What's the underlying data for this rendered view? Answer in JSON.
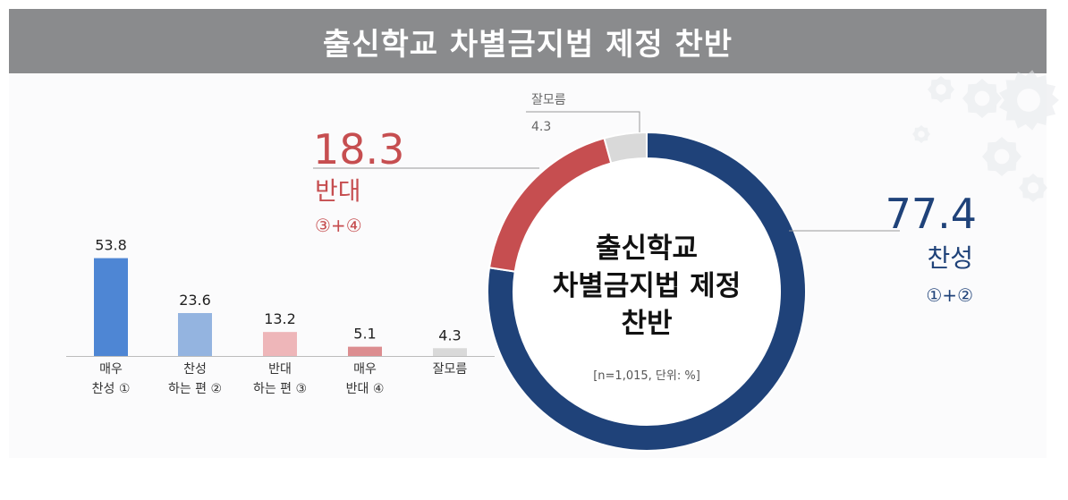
{
  "title": "출신학교 차별금지법 제정 찬반",
  "colors": {
    "title_bg": "#8a8b8d",
    "favor": "#1f4279",
    "oppose": "#c64e50",
    "dontknow": "#d9d9d9",
    "bar_strong_favor": "#4e86d4",
    "bar_favor": "#94b4e0",
    "bar_oppose": "#eeb6b9",
    "bar_strong_oppose": "#dc8d90",
    "bar_dontknow": "#d9d9d9"
  },
  "chart_data": [
    {
      "type": "bar",
      "categories": [
        [
          "매우",
          "찬성 ①"
        ],
        [
          "찬성",
          "하는 편 ②"
        ],
        [
          "반대",
          "하는 편 ③"
        ],
        [
          "매우",
          "반대 ④"
        ],
        [
          "잘모름"
        ]
      ],
      "values": [
        53.8,
        23.6,
        13.2,
        5.1,
        4.3
      ],
      "value_labels": [
        "53.8",
        "23.6",
        "13.2",
        "5.1",
        "4.3"
      ],
      "ylim": [
        0,
        60
      ]
    },
    {
      "type": "pie",
      "variant": "donut",
      "center_text": [
        "출신학교",
        "차별금지법 제정",
        "찬반"
      ],
      "note": "[n=1,015, 단위: %]",
      "slices": [
        {
          "label": "찬성",
          "sub": "①+②",
          "value": 77.4,
          "value_label": "77.4",
          "color": "#1f4279"
        },
        {
          "label": "반대",
          "sub": "③+④",
          "value": 18.3,
          "value_label": "18.3",
          "color": "#c64e50"
        },
        {
          "label": "잘모름",
          "sub": "",
          "value": 4.3,
          "value_label": "4.3",
          "color": "#d9d9d9"
        }
      ]
    }
  ]
}
